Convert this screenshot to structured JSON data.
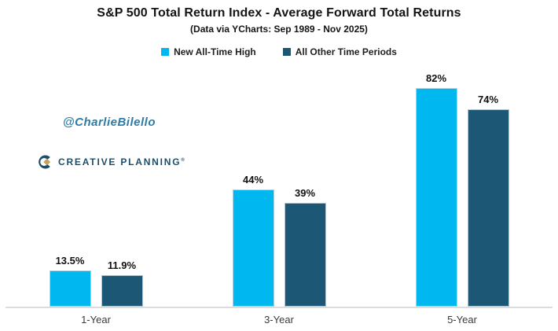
{
  "header": {
    "title": "S&P 500 Total Return Index - Average Forward Total Returns",
    "subtitle": "(Data via YCharts: Sep 1989 - Nov 2025)"
  },
  "legend": [
    {
      "label": "New All-Time High",
      "color": "#00B7F0"
    },
    {
      "label": "All Other Time Periods",
      "color": "#1C5876"
    }
  ],
  "watermarks": {
    "handle": "@CharlieBilello",
    "brand": "CREATIVE PLANNING",
    "brand_mark": "®",
    "brand_icon": "creative-planning-c-icon",
    "brand_navy": "#1C4E6B",
    "brand_gold": "#C3A15F",
    "handle_color": "#2E7BA6"
  },
  "colors": {
    "series_ath": "#00B7F0",
    "series_other": "#1C5876",
    "axis_line": "#DCDCDC",
    "text": "#141414"
  },
  "chart_data": {
    "type": "bar",
    "title": "S&P 500 Total Return Index - Average Forward Total Returns",
    "subtitle": "(Data via YCharts: Sep 1989 - Nov 2025)",
    "categories": [
      "1-Year",
      "3-Year",
      "5-Year"
    ],
    "series": [
      {
        "name": "New All-Time High",
        "color": "#00B7F0",
        "values": [
          13.5,
          44,
          82
        ],
        "labels": [
          "13.5%",
          "44%",
          "82%"
        ]
      },
      {
        "name": "All Other Time Periods",
        "color": "#1C5876",
        "values": [
          11.9,
          39,
          74
        ],
        "labels": [
          "11.9%",
          "39%",
          "74%"
        ]
      }
    ],
    "xlabel": "",
    "ylabel": "",
    "ylim": [
      0,
      90
    ],
    "grid": false,
    "value_labels": true,
    "legend_position": "top"
  }
}
